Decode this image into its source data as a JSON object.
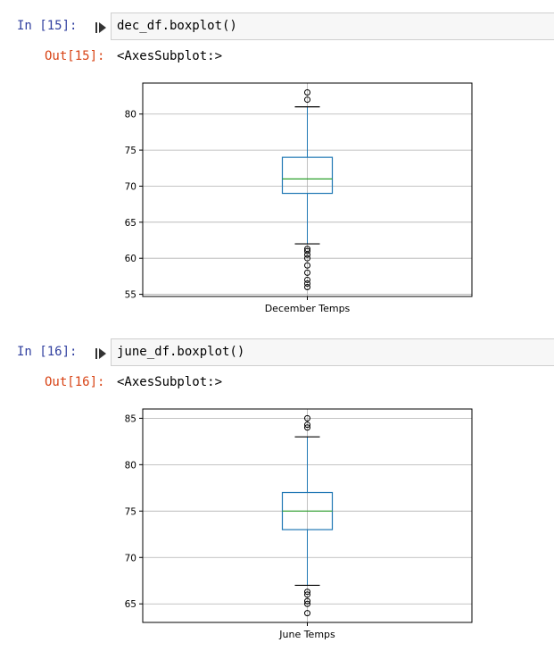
{
  "cells": [
    {
      "in_prompt": "In [15]:",
      "code": "dec_df.boxplot()",
      "out_prompt": "Out[15]:",
      "output": "<AxesSubplot:>"
    },
    {
      "in_prompt": "In [16]:",
      "code": "june_df.boxplot()",
      "out_prompt": "Out[16]:",
      "output": "<AxesSubplot:>"
    }
  ],
  "run_icon": "run-cell-icon",
  "colors": {
    "box": "#1f77b4",
    "median": "#2ca02c",
    "whisker": "#1f77b4",
    "cap": "#000000",
    "grid": "#b0b0b0"
  },
  "chart_data": [
    {
      "type": "boxplot",
      "categories": [
        "December Temps"
      ],
      "ylim": [
        54.7,
        84.3
      ],
      "yticks": [
        55,
        60,
        65,
        70,
        75,
        80
      ],
      "grid": true,
      "box": {
        "whisker_low": 62,
        "q1": 69,
        "median": 71,
        "q3": 74,
        "whisker_high": 81
      },
      "outliers": [
        56,
        56.5,
        57,
        58,
        59,
        60,
        60.5,
        61,
        61.3,
        82,
        83
      ]
    },
    {
      "type": "boxplot",
      "categories": [
        "June Temps"
      ],
      "ylim": [
        63.0,
        86.0
      ],
      "yticks": [
        65,
        70,
        75,
        80,
        85
      ],
      "grid": true,
      "box": {
        "whisker_low": 67,
        "q1": 73,
        "median": 75,
        "q3": 77,
        "whisker_high": 83
      },
      "outliers": [
        64,
        65,
        65.3,
        66,
        66.3,
        84,
        84.3,
        85
      ]
    }
  ]
}
